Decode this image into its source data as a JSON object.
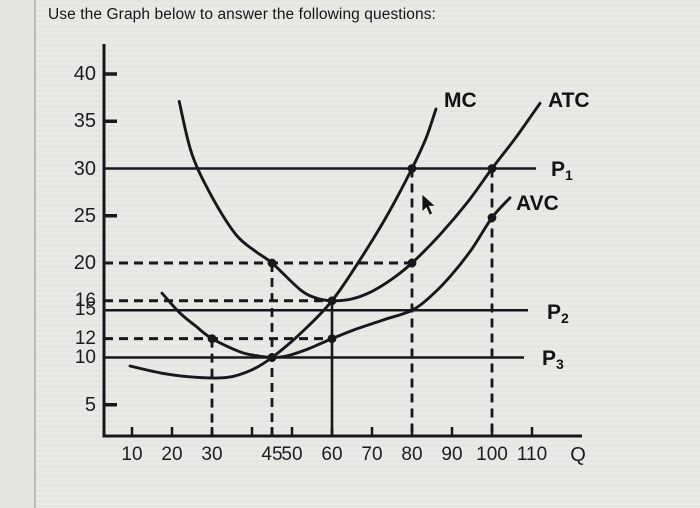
{
  "title": "Use the Graph below to answer the following questions:",
  "curve_labels": {
    "mc": "MC",
    "atc": "ATC",
    "avc": "AVC"
  },
  "price_line_labels": {
    "p1": {
      "base": "P",
      "sub": "1"
    },
    "p2": {
      "base": "P",
      "sub": "2"
    },
    "p3": {
      "base": "P",
      "sub": "3"
    }
  },
  "axis": {
    "x_label": "Q"
  },
  "chart_data": {
    "type": "line",
    "title": "",
    "xlabel": "Q",
    "ylabel": "",
    "xlim": [
      0,
      122
    ],
    "ylim": [
      0,
      43
    ],
    "grid": false,
    "legend_position": "labels-at-curve-ends",
    "y_ticks": [
      40,
      35,
      30,
      25,
      20,
      16,
      15,
      12,
      10,
      5
    ],
    "y_ticks_with_mark": [
      40,
      35,
      25,
      5
    ],
    "x_ticks_labeled": [
      10,
      20,
      30,
      45,
      50,
      60,
      70,
      80,
      90,
      100,
      110
    ],
    "x_ticks_unlabeled": [
      40
    ],
    "series": [
      {
        "name": "MC",
        "points": [
          [
            9.5,
            9.1
          ],
          [
            18,
            8.3
          ],
          [
            26,
            7.9
          ],
          [
            34,
            7.9
          ],
          [
            40,
            8.7
          ],
          [
            45,
            10
          ],
          [
            52,
            12.5
          ],
          [
            60,
            16
          ],
          [
            68,
            21
          ],
          [
            74,
            25.2
          ],
          [
            80,
            30
          ],
          [
            83.5,
            33.2
          ],
          [
            86,
            36.3
          ]
        ]
      },
      {
        "name": "ATC",
        "points": [
          [
            21.8,
            37.1
          ],
          [
            25,
            31.5
          ],
          [
            30,
            27
          ],
          [
            36,
            23
          ],
          [
            41,
            21.2
          ],
          [
            45,
            20
          ],
          [
            52,
            17.2
          ],
          [
            56,
            16.3
          ],
          [
            60,
            16
          ],
          [
            65,
            16.2
          ],
          [
            70,
            17
          ],
          [
            75,
            18.3
          ],
          [
            80,
            20
          ],
          [
            87,
            23
          ],
          [
            94,
            26.5
          ],
          [
            100,
            30
          ],
          [
            106,
            33.3
          ],
          [
            112,
            36.9
          ]
        ]
      },
      {
        "name": "AVC",
        "points": [
          [
            17.5,
            16.8
          ],
          [
            22,
            14.7
          ],
          [
            26,
            13.3
          ],
          [
            30,
            12
          ],
          [
            37,
            10.6
          ],
          [
            41,
            10.2
          ],
          [
            45,
            10
          ],
          [
            49,
            10.2
          ],
          [
            54,
            10.9
          ],
          [
            60,
            12
          ],
          [
            66,
            13
          ],
          [
            73,
            14
          ],
          [
            80,
            15
          ],
          [
            85,
            16.6
          ],
          [
            90,
            18.8
          ],
          [
            95,
            21.5
          ],
          [
            100,
            24.8
          ],
          [
            104.5,
            26.9
          ]
        ]
      }
    ],
    "price_lines": [
      {
        "name": "P1",
        "value": 30,
        "end_q": 111
      },
      {
        "name": "P2",
        "value": 15,
        "end_q": 109
      },
      {
        "name": "P3",
        "value": 10,
        "end_q": 108
      }
    ],
    "guides": {
      "h_dashed": [
        {
          "value": 20,
          "to_q": 80
        },
        {
          "value": 16,
          "to_q": 60
        },
        {
          "value": 12,
          "to_q": 60
        }
      ],
      "v_dashed": [
        {
          "q": 30,
          "to_value": 12
        },
        {
          "q": 45,
          "to_value": 20
        },
        {
          "q": 80,
          "to_value": 30
        },
        {
          "q": 100,
          "to_value": 30
        }
      ],
      "v_solid": [
        {
          "q": 60,
          "to_value": 16
        }
      ]
    },
    "marked_points": [
      [
        45,
        20
      ],
      [
        45,
        10
      ],
      [
        30,
        12
      ],
      [
        60,
        16
      ],
      [
        60,
        12
      ],
      [
        80,
        30
      ],
      [
        80,
        20
      ],
      [
        100,
        30
      ],
      [
        100,
        24.8
      ]
    ],
    "annotations": [
      "MC",
      "ATC",
      "AVC",
      "P1",
      "P2",
      "P3"
    ]
  }
}
